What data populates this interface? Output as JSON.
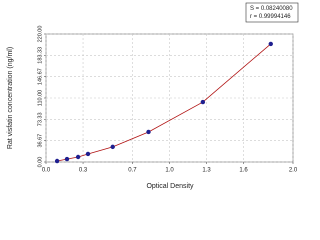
{
  "chart_data": {
    "type": "scatter",
    "x_label": "Optical Density",
    "y_label": "Rat visfatin concentration (ng/ml)",
    "annotations": [
      "S = 0.08240080",
      "r = 0.99994146"
    ],
    "fit_line": true,
    "grid": true,
    "series": [
      {
        "color": "#1f1f8f",
        "line_color": "#b01010",
        "x": [
          0.09,
          0.17,
          0.26,
          0.34,
          0.54,
          0.83,
          1.27,
          1.82
        ],
        "values": [
          1.7,
          5,
          8.6,
          13.8,
          26,
          51.6,
          103,
          203
        ]
      }
    ],
    "xlim": [
      0,
      2.0
    ],
    "xticks": [
      {
        "value": 0,
        "label": "0.0"
      },
      0.3,
      0.7,
      {
        "value": 1,
        "label": "1.0"
      },
      1.3,
      1.6,
      {
        "value": 2,
        "label": "2.0"
      }
    ],
    "ylim": [
      0,
      220
    ],
    "yticks": [
      {
        "value": 0,
        "label": "0.00"
      },
      36.67,
      73.33,
      {
        "value": 110,
        "label": "110.00"
      },
      146.67,
      183.33,
      {
        "value": 220,
        "label": "220.00"
      }
    ]
  }
}
